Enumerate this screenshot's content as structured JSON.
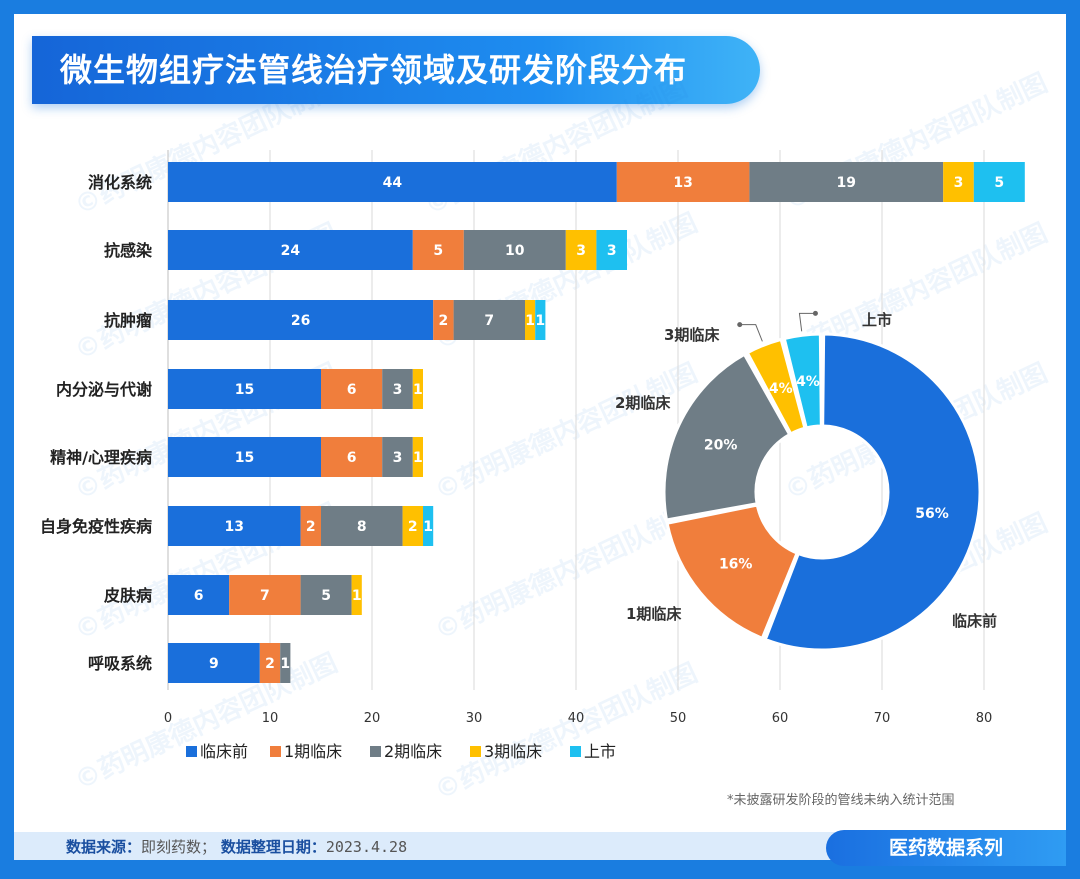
{
  "header": {
    "title": "微生物组疗法管线治疗领域及研发阶段分布"
  },
  "footer": {
    "source_label": "数据来源：",
    "source_value": "即刻药数；",
    "date_label": "数据整理日期：",
    "date_value": "2023.4.28",
    "series_tag": "医药数据系列",
    "footnote": "*未披露研发阶段的管线未纳入统计范围"
  },
  "watermark_text": "©药明康德内容团队制图",
  "colors": {
    "临床前": "#1a6fdb",
    "1期临床": "#f07e3c",
    "2期临床": "#6f7d86",
    "3期临床": "#ffc000",
    "上市": "#1ec0f0"
  },
  "chart_data": [
    {
      "type": "bar",
      "orientation": "horizontal",
      "stacked": true,
      "categories": [
        "消化系统",
        "抗感染",
        "抗肿瘤",
        "内分泌与代谢",
        "精神/心理疾病",
        "自身免疫性疾病",
        "皮肤病",
        "呼吸系统"
      ],
      "series": [
        {
          "name": "临床前",
          "values": [
            44,
            24,
            26,
            15,
            15,
            13,
            6,
            9
          ]
        },
        {
          "name": "1期临床",
          "values": [
            13,
            5,
            2,
            6,
            6,
            2,
            7,
            2
          ]
        },
        {
          "name": "2期临床",
          "values": [
            19,
            10,
            7,
            3,
            3,
            8,
            5,
            1
          ]
        },
        {
          "name": "3期临床",
          "values": [
            3,
            3,
            1,
            1,
            1,
            2,
            1,
            0
          ]
        },
        {
          "name": "上市",
          "values": [
            5,
            3,
            1,
            0,
            0,
            1,
            0,
            0
          ]
        }
      ],
      "xlim": [
        0,
        80
      ],
      "xticks": [
        0,
        10,
        20,
        30,
        40,
        50,
        60,
        70,
        80
      ],
      "grid": "vertical",
      "legend": "bottom"
    },
    {
      "type": "pie",
      "donut": true,
      "labels": [
        "临床前",
        "1期临床",
        "2期临床",
        "3期临床",
        "上市"
      ],
      "values": [
        56,
        16,
        20,
        4,
        4
      ],
      "value_labels": [
        "56%",
        "16%",
        "20%",
        "4%",
        "4%"
      ]
    }
  ]
}
